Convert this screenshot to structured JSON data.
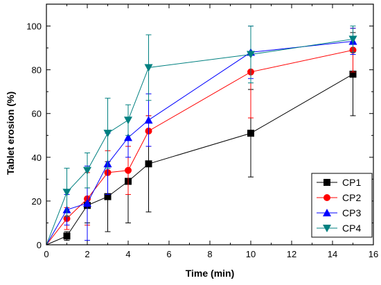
{
  "chart_data": {
    "type": "line",
    "title": "",
    "xlabel": "Time (min)",
    "ylabel": "Tablet erosion (%)",
    "xlim": [
      0,
      16
    ],
    "ylim": [
      0,
      110
    ],
    "x_ticks": [
      0,
      2,
      4,
      6,
      8,
      10,
      12,
      14,
      16
    ],
    "y_ticks": [
      0,
      20,
      40,
      60,
      80,
      100
    ],
    "grid": false,
    "legend_position": "bottom-right",
    "x": [
      0,
      1,
      2,
      3,
      4,
      5,
      10,
      15
    ],
    "series": [
      {
        "name": "CP1",
        "color": "#000000",
        "marker": "square",
        "values": [
          0,
          4,
          18,
          22,
          29,
          37,
          51,
          78
        ],
        "error": [
          0,
          2,
          8,
          16,
          19,
          22,
          20,
          19
        ]
      },
      {
        "name": "CP2",
        "color": "#ff0000",
        "marker": "circle",
        "values": [
          0,
          12,
          21,
          33,
          34,
          52,
          79,
          89
        ],
        "error": [
          0,
          5,
          12,
          10,
          11,
          7,
          21,
          10
        ]
      },
      {
        "name": "CP3",
        "color": "#0000ff",
        "marker": "triangle-up",
        "values": [
          0,
          16,
          19,
          37,
          49,
          57,
          88,
          93
        ],
        "error": [
          0,
          7,
          17,
          14,
          9,
          12,
          12,
          6
        ]
      },
      {
        "name": "CP4",
        "color": "#008080",
        "marker": "triangle-down",
        "values": [
          0,
          24,
          34,
          51,
          57,
          81,
          87,
          94
        ],
        "error": [
          0,
          11,
          8,
          16,
          7,
          15,
          13,
          6
        ]
      }
    ]
  }
}
